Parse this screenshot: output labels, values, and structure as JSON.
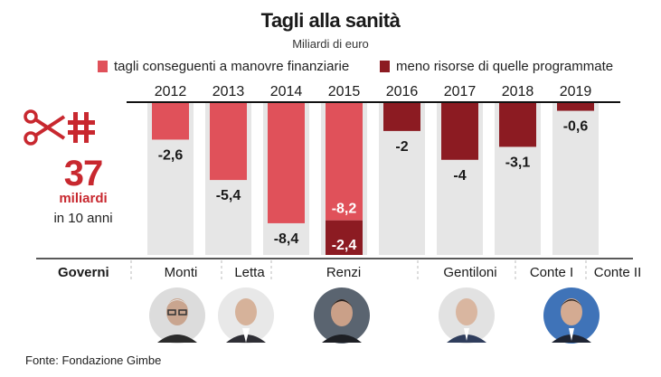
{
  "title": "Tagli alla sanità",
  "subtitle": "Miliardi di euro",
  "legend": {
    "cuts": "tagli conseguenti a manovre finanziarie",
    "less_resources": "meno risorse di quelle programmate"
  },
  "colors": {
    "cuts": "#e0515a",
    "less_resources": "#8c1b22",
    "background_bar": "#e6e6e6",
    "accent": "#c8282f"
  },
  "side": {
    "total": "37",
    "unit": "miliardi",
    "period": "in 10 anni",
    "icon": "scissors-cross-icon"
  },
  "chart_data": {
    "type": "bar",
    "title": "Tagli alla sanità",
    "subtitle": "Miliardi di euro",
    "categories": [
      "2012",
      "2013",
      "2014",
      "2015",
      "2016",
      "2017",
      "2018",
      "2019"
    ],
    "series": [
      {
        "name": "tagli conseguenti a manovre finanziarie",
        "values": [
          -2.6,
          -5.4,
          -8.4,
          -8.2,
          0,
          0,
          0,
          0
        ]
      },
      {
        "name": "meno risorse di quelle programmate",
        "values": [
          0,
          0,
          0,
          -2.4,
          -2,
          -4,
          -3.1,
          -0.6
        ]
      }
    ],
    "labels": [
      "-2,6",
      "-5,4",
      "-8,4",
      "-8,2",
      "-2,4",
      "-2",
      "-4",
      "-3,1",
      "-0,6"
    ],
    "ylim": [
      -10.6,
      0
    ],
    "stacked": true,
    "grid": false
  },
  "governments": {
    "label": "Governi",
    "names": [
      "Monti",
      "Letta",
      "Renzi",
      "Gentiloni",
      "Conte I",
      "Conte II"
    ]
  },
  "portraits": [
    "Monti",
    "Letta",
    "Renzi",
    "Gentiloni",
    "Conte"
  ],
  "source": "Fonte: Fondazione Gimbe"
}
